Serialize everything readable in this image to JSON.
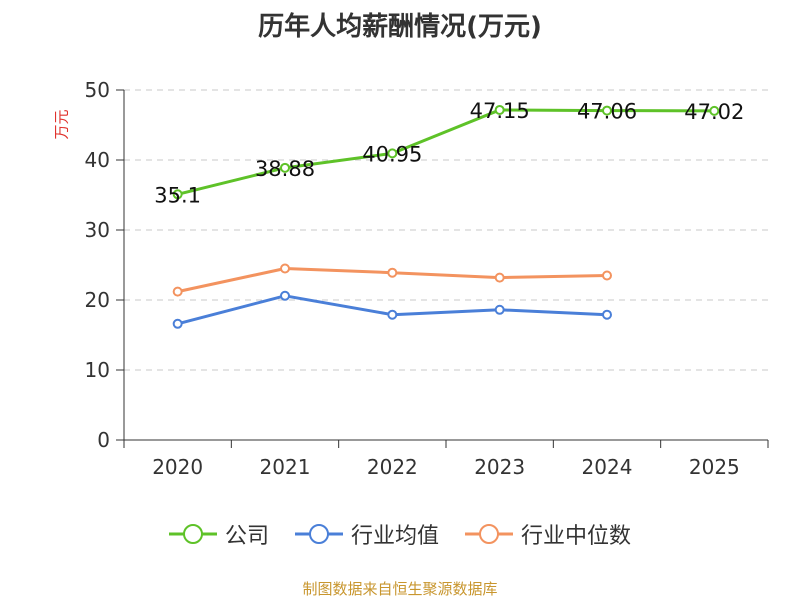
{
  "chart_data": {
    "type": "line",
    "title": "历年人均薪酬情况(万元)",
    "ylabel": "万元",
    "categories": [
      "2020",
      "2021",
      "2022",
      "2023",
      "2024",
      "2025"
    ],
    "ylim": [
      0,
      50
    ],
    "yticks": [
      0,
      10,
      20,
      30,
      40,
      50
    ],
    "grid": true,
    "legend_position": "bottom",
    "series": [
      {
        "name": "公司",
        "color": "#5ec228",
        "values": [
          35.1,
          38.88,
          40.95,
          47.15,
          47.06,
          47.02
        ],
        "labels": [
          "35.1",
          "38.88",
          "40.95",
          "47.15",
          "47.06",
          "47.02"
        ]
      },
      {
        "name": "行业均值",
        "color": "#4a7fd8",
        "values": [
          16.6,
          20.6,
          17.9,
          18.6,
          17.9,
          null
        ]
      },
      {
        "name": "行业中位数",
        "color": "#f3935f",
        "values": [
          21.2,
          24.5,
          23.9,
          23.2,
          23.5,
          null
        ]
      }
    ]
  },
  "source": "制图数据来自恒生聚源数据库"
}
